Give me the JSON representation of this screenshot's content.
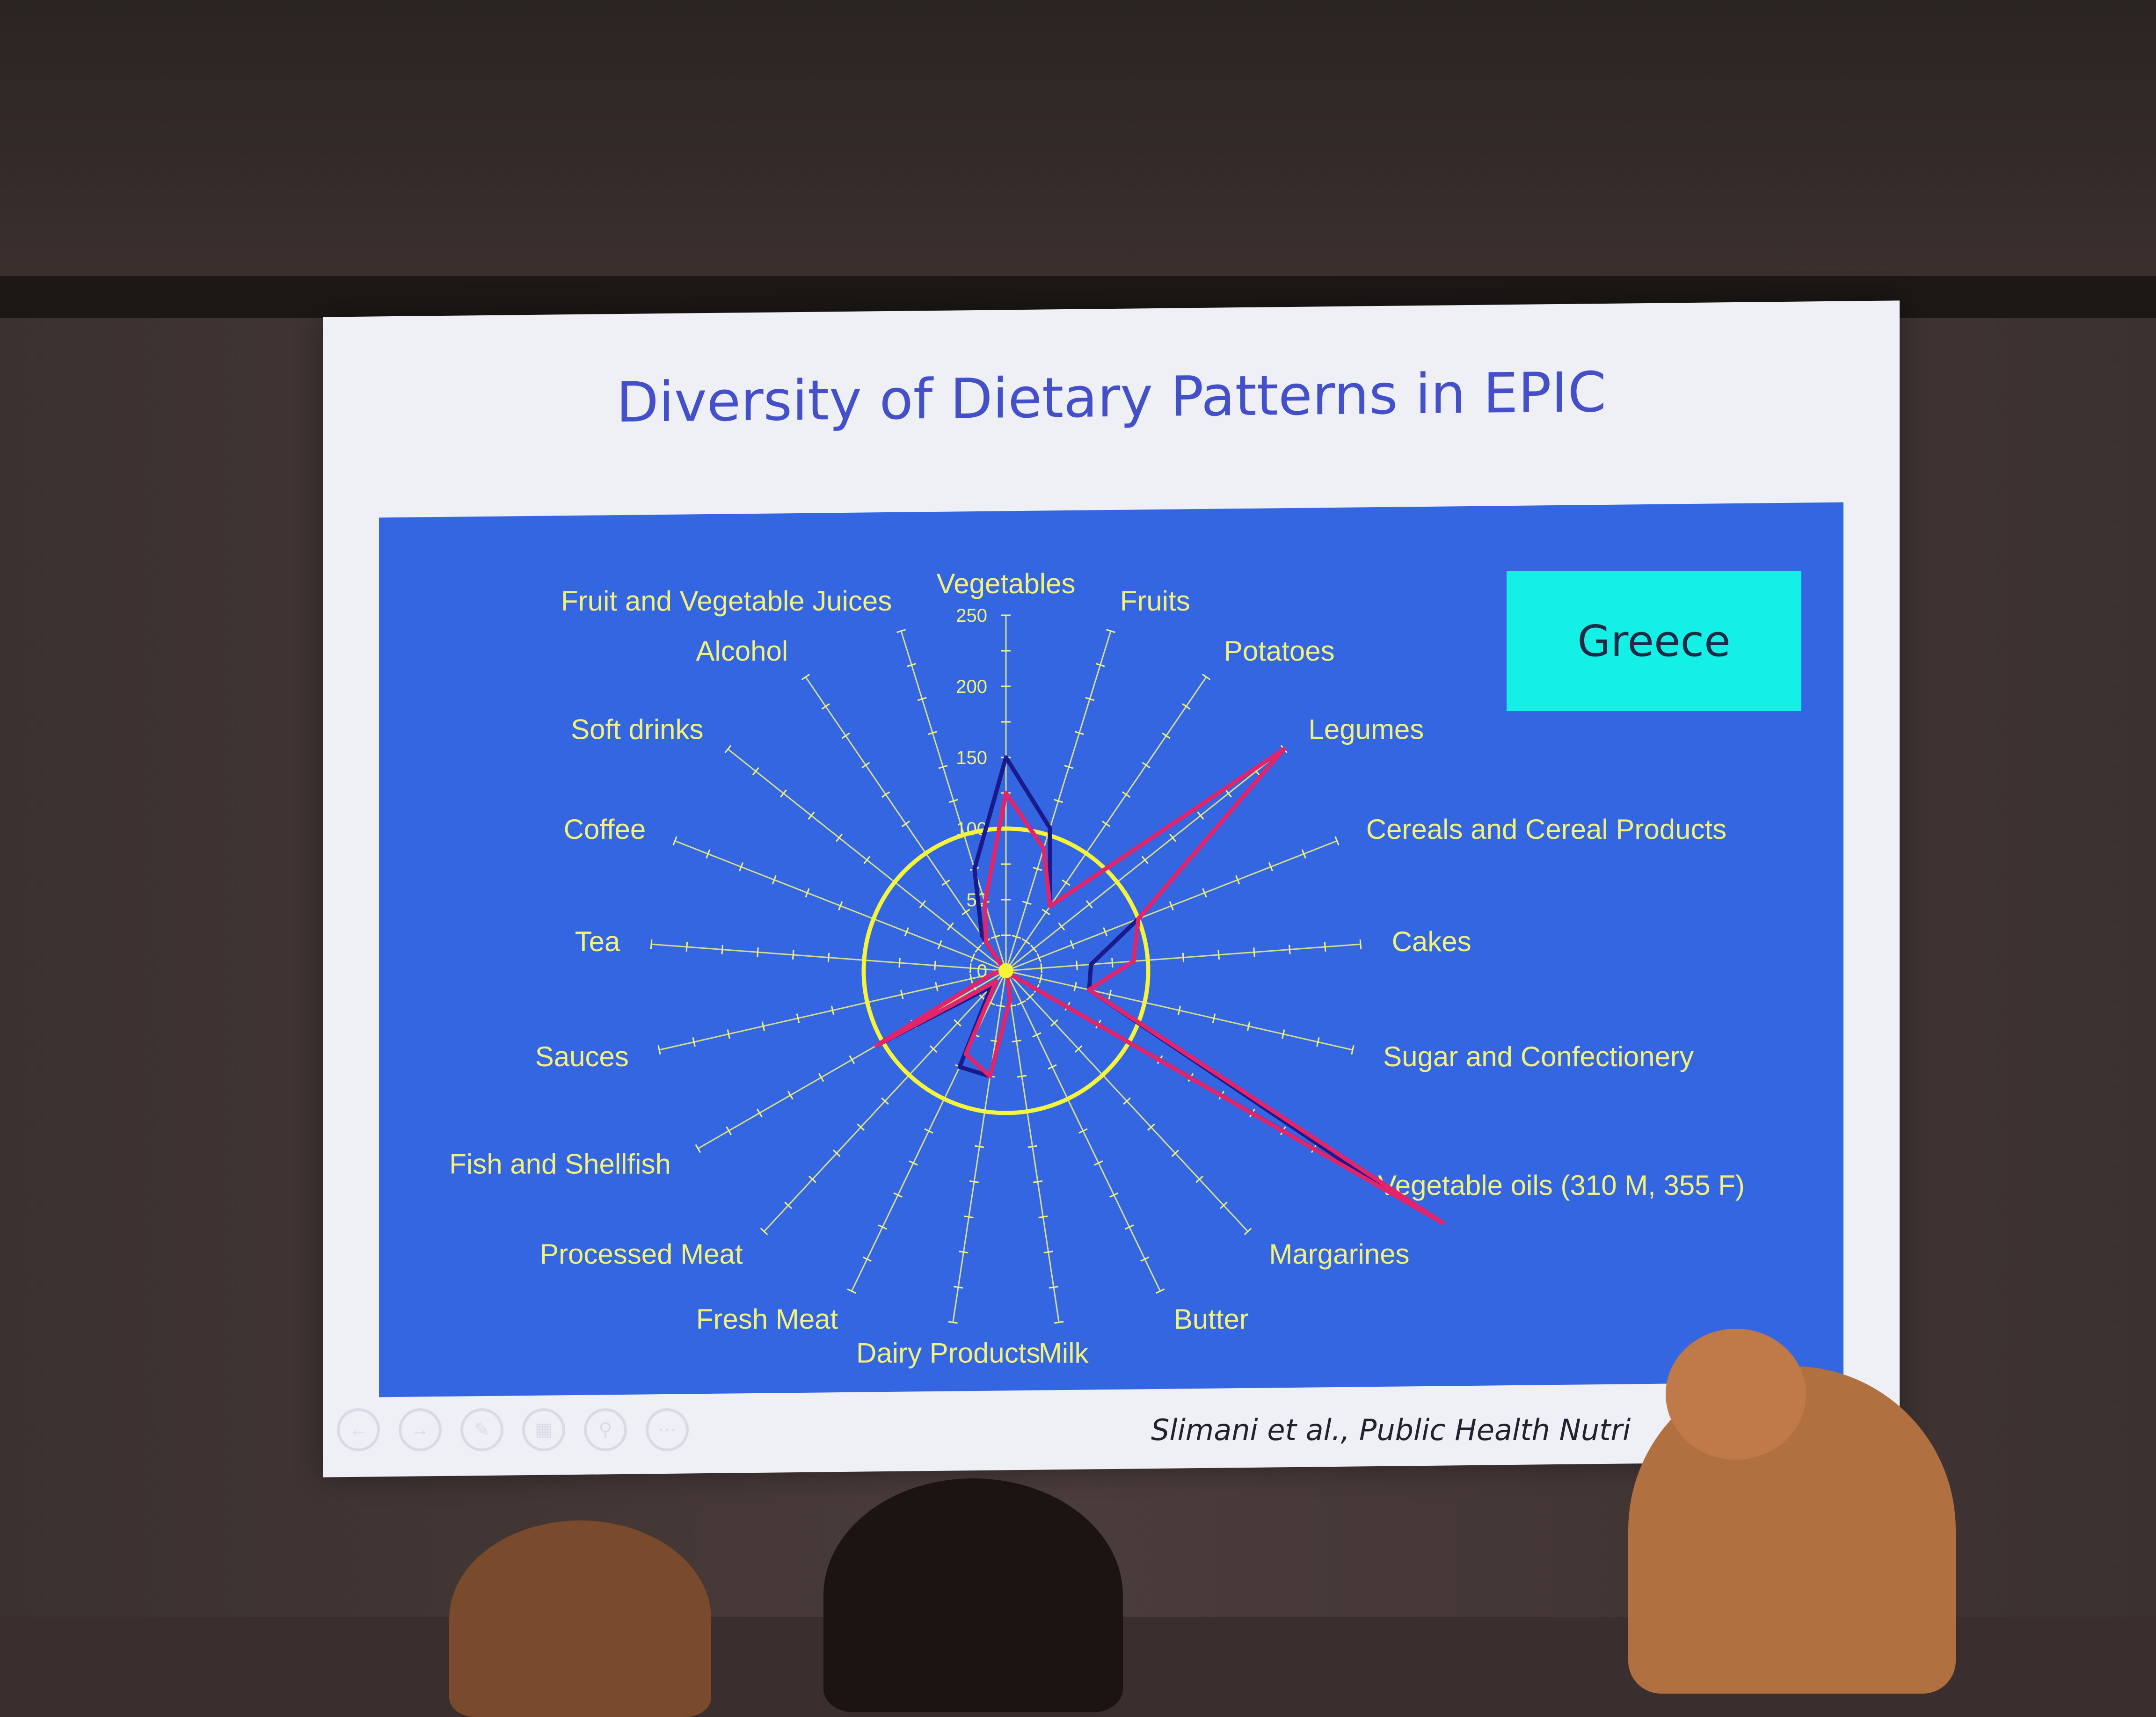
{
  "slide": {
    "title": "Diversity of Dietary Patterns in EPIC",
    "citation": "Slimani et al., Public Health Nutri"
  },
  "country_box": {
    "label": "Greece",
    "color": "#14f0e6"
  },
  "toolbar": {
    "icons": [
      "back-icon",
      "forward-icon",
      "pen-icon",
      "slides-icon",
      "zoom-icon",
      "more-icon"
    ]
  },
  "colors": {
    "panel": "#3366e0",
    "axes": "#f2f27a",
    "reference_circle": "#f5f53c",
    "series_a": "#1a1a8c",
    "series_b": "#e3246b"
  },
  "chart_data": {
    "type": "radar",
    "categories": [
      "Vegetables",
      "Fruits",
      "Potatoes",
      "Legumes",
      "Cereals and Cereal Products",
      "Cakes",
      "Sugar and Confectionery",
      "Vegetable oils (310 M, 355 F)",
      "Margarines",
      "Butter",
      "Milk",
      "Dairy Products",
      "Fresh Meat",
      "Processed Meat",
      "Fish and Shellfish",
      "Sauces",
      "Tea",
      "Coffee",
      "Soft drinks",
      "Alcohol",
      "Fruit and Vegetable Juices"
    ],
    "ticks": [
      0,
      50,
      100,
      150,
      200,
      250
    ],
    "rlim": [
      0,
      250
    ],
    "reference_value": 100,
    "series": [
      {
        "values": [
          150,
          105,
          55,
          250,
          100,
          60,
          60,
          310,
          2,
          2,
          20,
          75,
          75,
          15,
          105,
          10,
          2,
          3,
          2,
          30,
          75
        ]
      },
      {
        "values": [
          125,
          90,
          55,
          250,
          100,
          90,
          60,
          355,
          2,
          2,
          20,
          75,
          65,
          10,
          105,
          10,
          2,
          3,
          2,
          25,
          50
        ]
      }
    ]
  }
}
